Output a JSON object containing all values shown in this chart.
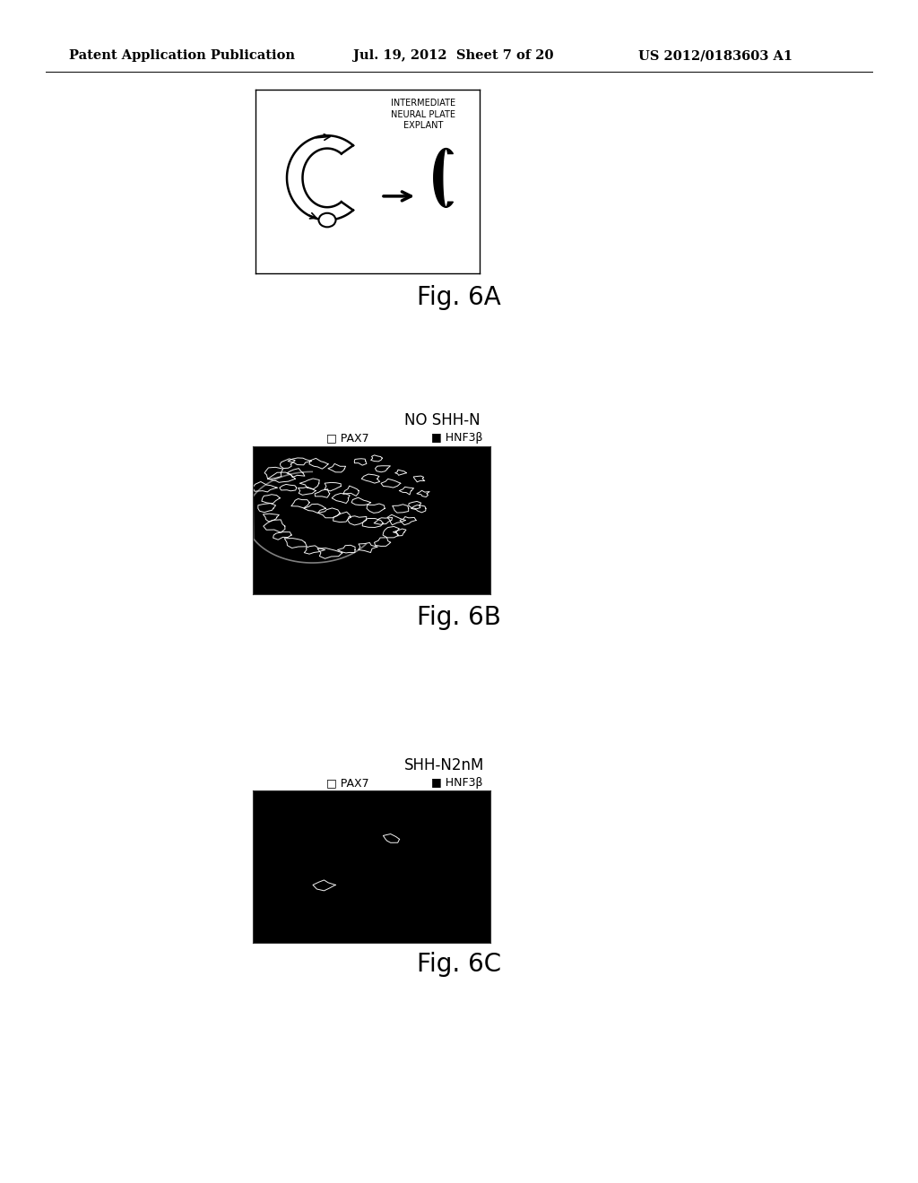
{
  "page_header_left": "Patent Application Publication",
  "page_header_mid": "Jul. 19, 2012  Sheet 7 of 20",
  "page_header_right": "US 2012/0183603 A1",
  "fig6a_title": "INTERMEDIATE\nNEURAL PLATE\nEXPLANT",
  "fig6a_label": "Fig. 6A",
  "fig6b_title": "NO SHH-N",
  "fig6b_legend_pax7": "PAX7",
  "fig6b_legend_hnf3b": "HNF3β",
  "fig6b_label": "Fig. 6B",
  "fig6c_title": "SHH-N2nM",
  "fig6c_legend_pax7": "PAX7",
  "fig6c_legend_hnf3b": "HNF3β",
  "fig6c_label": "Fig. 6C",
  "background_color": "#ffffff",
  "header_fontsize": 10.5,
  "fig_label_fontsize": 20,
  "subtitle_fontsize": 11,
  "legend_fontsize": 9
}
